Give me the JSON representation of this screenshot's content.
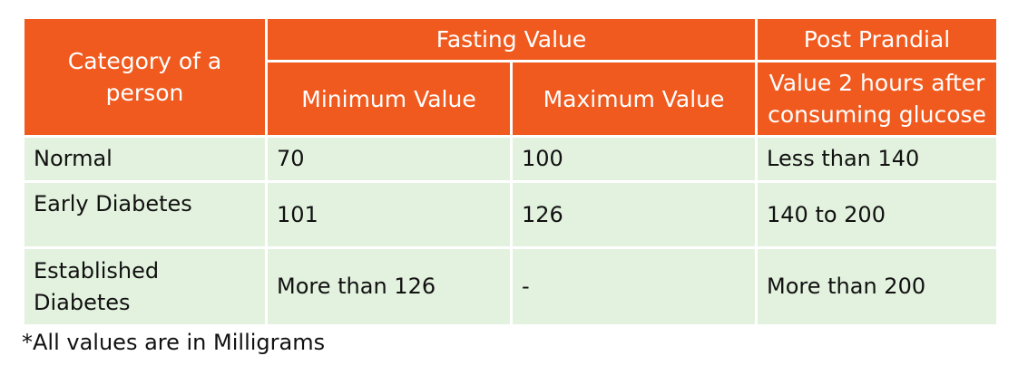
{
  "table": {
    "headers": {
      "category": "Category of a person",
      "fasting": "Fasting Value",
      "post_prandial": "Post Prandial",
      "minimum": "Minimum Value",
      "maximum": "Maximum Value",
      "two_hours": "Value 2 hours after consuming glucose"
    },
    "rows": [
      {
        "category": "Normal",
        "minimum": "70",
        "maximum": "100",
        "post_prandial": "Less than 140"
      },
      {
        "category": "Early Diabetes",
        "minimum": "101",
        "maximum": "126",
        "post_prandial": "140 to 200"
      },
      {
        "category": "Established Diabetes",
        "minimum": "More than 126",
        "maximum": "-",
        "post_prandial": "More than 200"
      }
    ],
    "colors": {
      "header_bg": "#f05a1e",
      "body_bg": "#e3f2de",
      "header_text": "#ffffff"
    }
  },
  "footnote": "*All values are in Milligrams"
}
